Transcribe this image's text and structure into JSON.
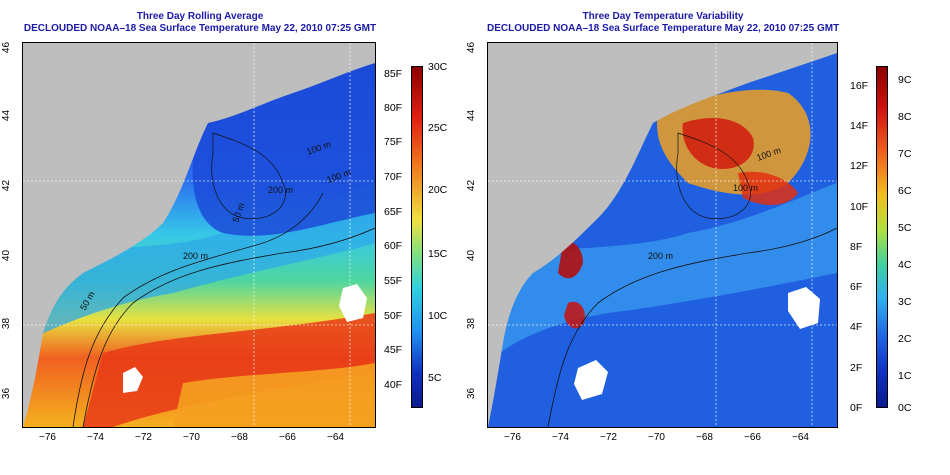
{
  "left_panel": {
    "title": "Three Day Rolling Average",
    "subtitle": "DECLOUDED NOAA–18 Sea Surface Temperature May 22, 2010 07:25 GMT",
    "colorbar_f_labels": [
      "85F",
      "80F",
      "75F",
      "70F",
      "65F",
      "60F",
      "55F",
      "50F",
      "45F",
      "40F"
    ],
    "colorbar_c_labels": [
      "30C",
      "25C",
      "20C",
      "15C",
      "10C",
      "5C"
    ],
    "contour_labels": [
      "50 m",
      "200 m",
      "100 m",
      "100 m",
      "200 m",
      "50 m"
    ]
  },
  "right_panel": {
    "title": "Three Day Temperature Variability",
    "subtitle": "DECLOUDED NOAA–18 Sea Surface Temperature May 22, 2010 07:25 GMT",
    "colorbar_f_labels": [
      "16F",
      "14F",
      "12F",
      "10F",
      "8F",
      "6F",
      "4F",
      "2F",
      "0F"
    ],
    "colorbar_c_labels": [
      "9C",
      "8C",
      "7C",
      "6C",
      "5C",
      "4C",
      "3C",
      "2C",
      "1C",
      "0C"
    ],
    "contour_labels": [
      "100 m",
      "100 m",
      "200 m"
    ]
  },
  "axes": {
    "x_ticks": [
      "−76",
      "−74",
      "−72",
      "−70",
      "−68",
      "−66",
      "−64"
    ],
    "y_ticks": [
      "46",
      "44",
      "42",
      "40",
      "38",
      "36"
    ]
  },
  "colors": {
    "title": "#1a1aa6",
    "land": "#bebebe",
    "cloud": "#ffffff"
  }
}
